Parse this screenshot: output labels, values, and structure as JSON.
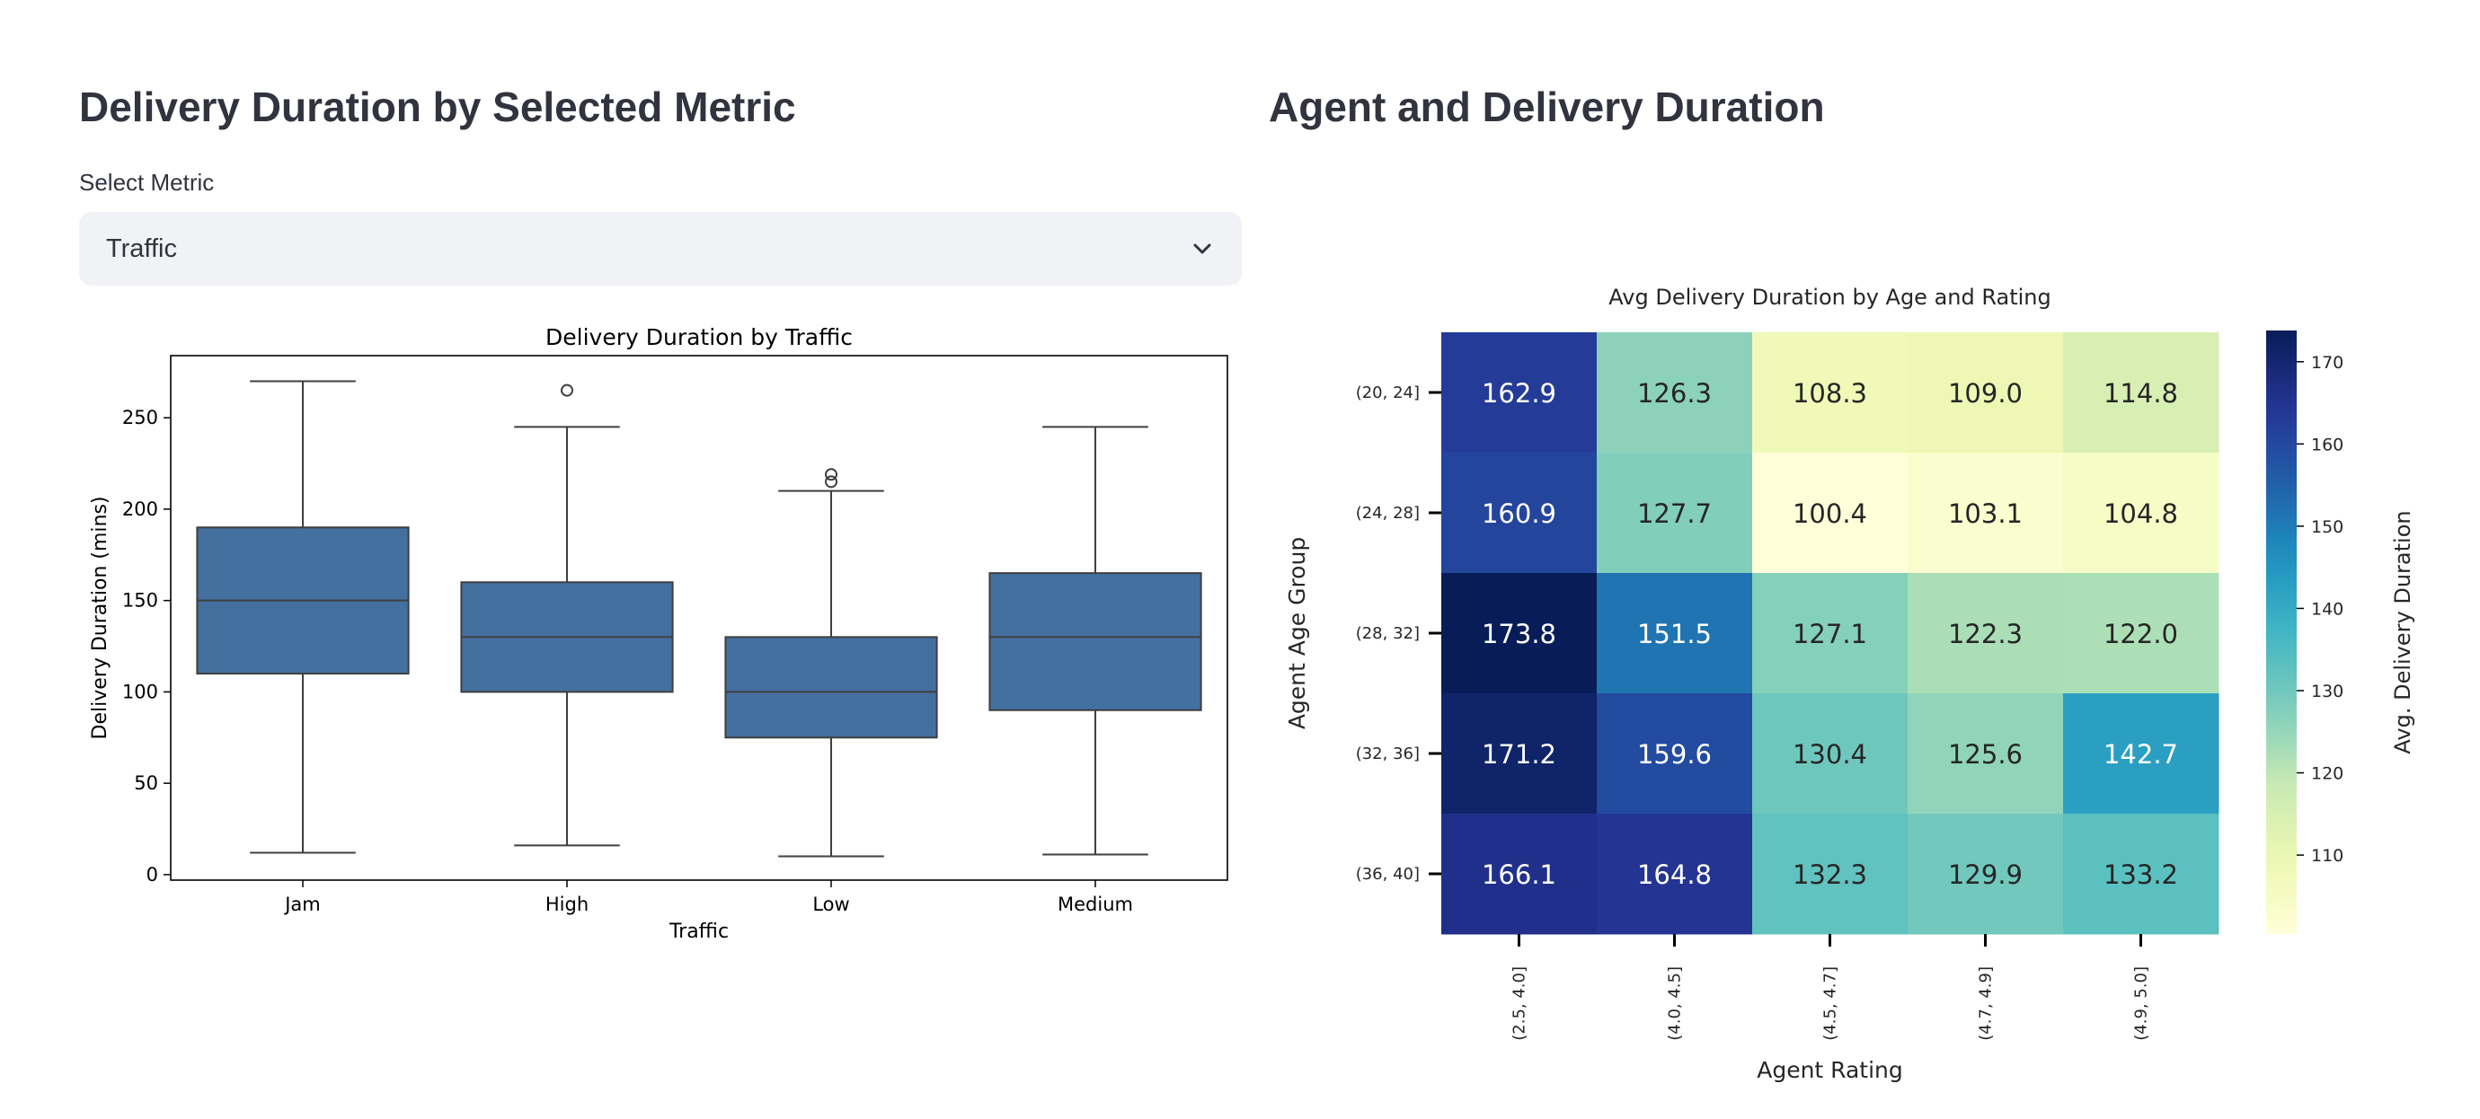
{
  "left_panel": {
    "heading": "Delivery Duration by Selected Metric",
    "select_label": "Select Metric",
    "select_value": "Traffic"
  },
  "right_panel": {
    "heading": "Agent and Delivery Duration"
  },
  "chart_data": [
    {
      "type": "box",
      "title": "Delivery Duration by Traffic",
      "xlabel": "Traffic",
      "ylabel": "Delivery Duration (mins)",
      "ylim": [
        -3,
        284
      ],
      "yticks": [
        0,
        50,
        100,
        150,
        200,
        250
      ],
      "color": "#4470a0",
      "categories": [
        "Jam",
        "High",
        "Low",
        "Medium"
      ],
      "boxes": [
        {
          "whisker_low": 12,
          "q1": 110,
          "median": 150,
          "q3": 190,
          "whisker_high": 270,
          "outliers": []
        },
        {
          "whisker_low": 16,
          "q1": 100,
          "median": 130,
          "q3": 160,
          "whisker_high": 245,
          "outliers": [
            265
          ]
        },
        {
          "whisker_low": 10,
          "q1": 75,
          "median": 100,
          "q3": 130,
          "whisker_high": 210,
          "outliers": [
            215,
            219
          ]
        },
        {
          "whisker_low": 11,
          "q1": 90,
          "median": 130,
          "q3": 165,
          "whisker_high": 245,
          "outliers": []
        }
      ],
      "grid": false
    },
    {
      "type": "heatmap",
      "title": "Avg Delivery Duration by Age and Rating",
      "xlabel": "Agent Rating",
      "ylabel": "Agent Age Group",
      "x_categories": [
        "(2.5, 4.0]",
        "(4.0, 4.5]",
        "(4.5, 4.7]",
        "(4.7, 4.9]",
        "(4.9, 5.0]"
      ],
      "y_categories": [
        "(20, 24]",
        "(24, 28]",
        "(28, 32]",
        "(32, 36]",
        "(36, 40]"
      ],
      "values": [
        [
          162.9,
          126.3,
          108.3,
          109.0,
          114.8
        ],
        [
          160.9,
          127.7,
          100.4,
          103.1,
          104.8
        ],
        [
          173.8,
          151.5,
          127.1,
          122.3,
          122.0
        ],
        [
          171.2,
          159.6,
          130.4,
          125.6,
          142.7
        ],
        [
          166.1,
          164.8,
          132.3,
          129.9,
          133.2
        ]
      ],
      "colorbar": {
        "label": "Avg. Delivery Duration",
        "ticks": [
          110,
          120,
          130,
          140,
          150,
          160,
          170
        ],
        "range": [
          100.4,
          173.8
        ],
        "colormap": "YlGnBu"
      }
    }
  ]
}
